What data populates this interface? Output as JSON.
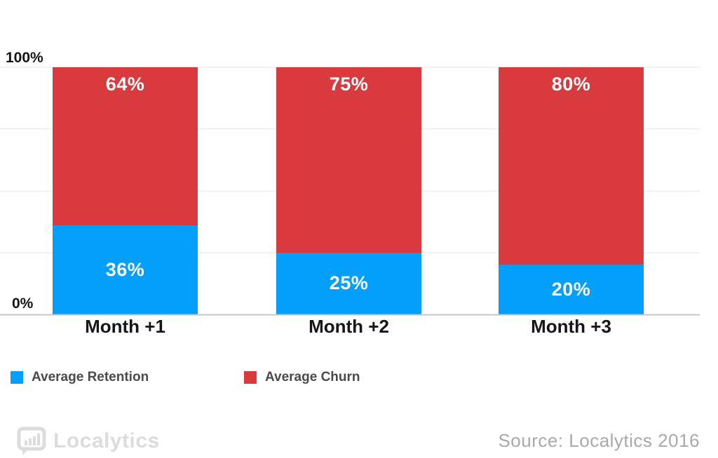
{
  "chart_data": {
    "type": "bar",
    "stacked": true,
    "categories": [
      "Month +1",
      "Month +2",
      "Month +3"
    ],
    "series": [
      {
        "name": "Average Retention",
        "color": "#049ffb",
        "values": [
          36,
          25,
          20
        ]
      },
      {
        "name": "Average Churn",
        "color": "#d93a3e",
        "values": [
          64,
          75,
          80
        ]
      }
    ],
    "value_suffix": "%",
    "ylim": [
      0,
      100
    ],
    "y_tick_labels_shown": [
      "100%",
      "0%"
    ],
    "grid": true,
    "gridline_interval_pct": 25,
    "legend_position": "bottom-left",
    "value_label_color": "#ffffff"
  },
  "axis": {
    "top_label": "100%",
    "bottom_label": "0%"
  },
  "footer": {
    "logo_text": "Localytics",
    "source": "Source: Localytics 2016"
  },
  "colors": {
    "retention_blue": "#049ffb",
    "churn_red": "#d93a3e",
    "gridline": "#e3e3e3",
    "baseline": "#c6c6c6",
    "legend_text": "#4a4a4a",
    "logo_gray": "#dcdcdc",
    "source_gray": "#a9a9a9"
  }
}
